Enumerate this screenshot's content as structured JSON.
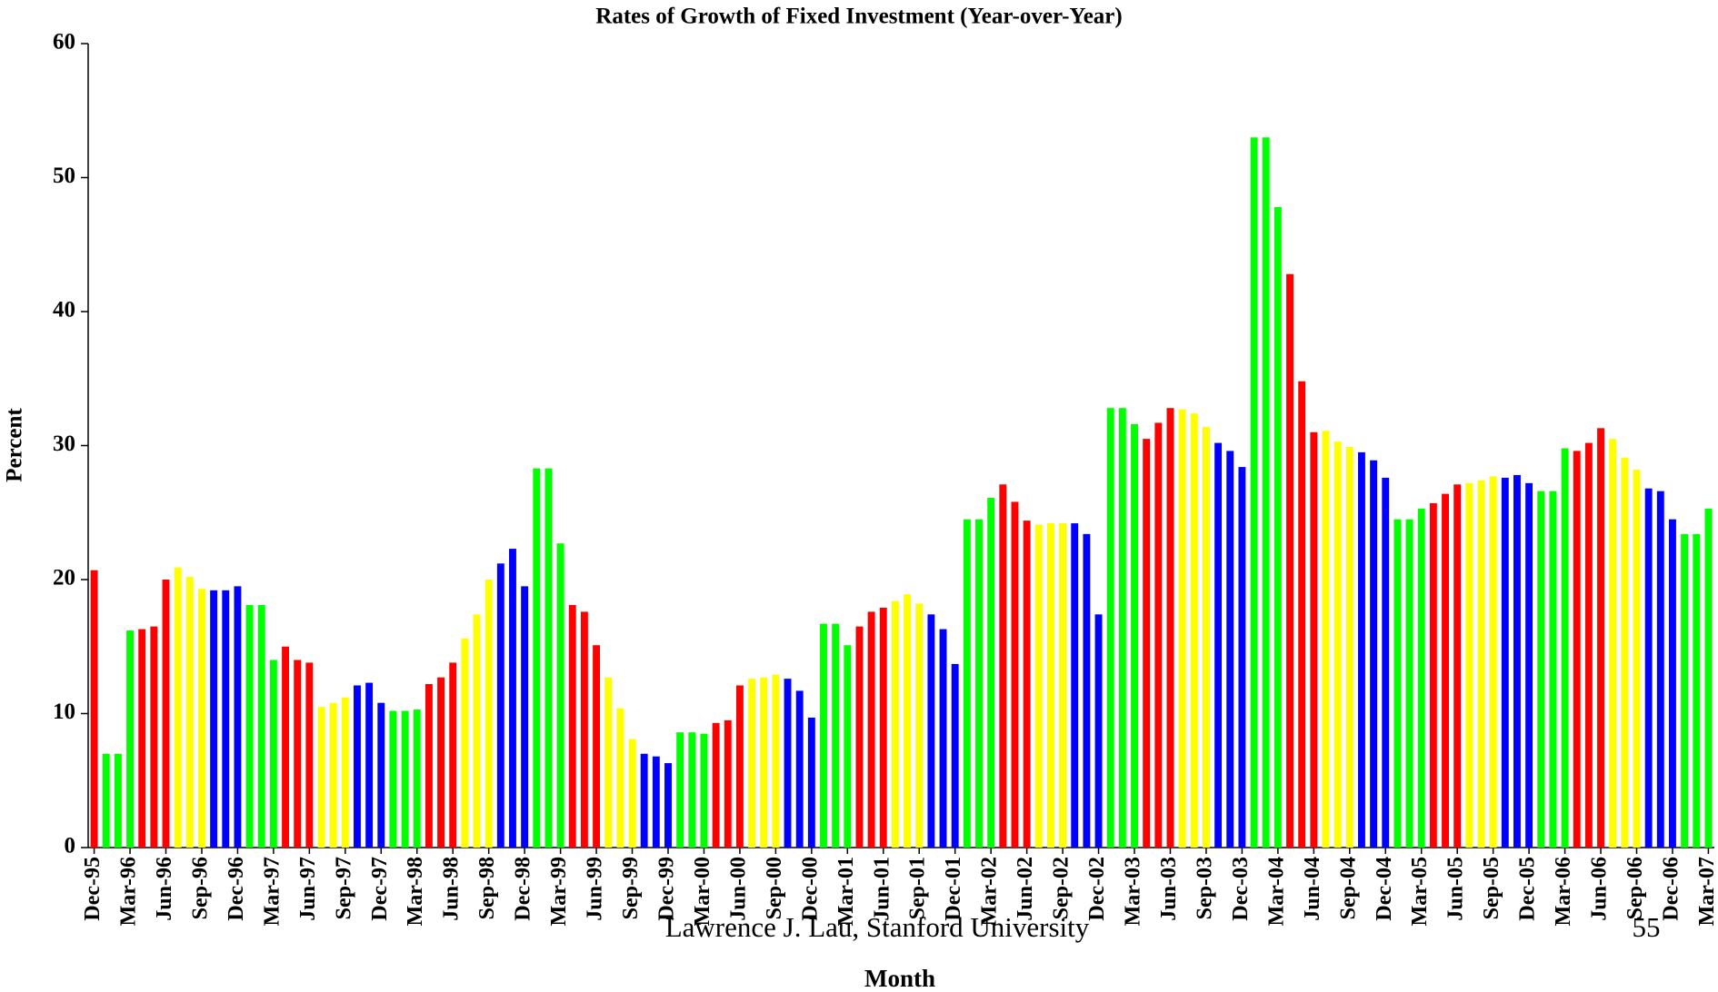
{
  "chart_data": {
    "type": "bar",
    "title": "Rates of Growth of Fixed Investment (Year-over-Year)",
    "x_label": "Month",
    "y_label": "Percent",
    "footer": "Lawrence J. Lau, Stanford University",
    "page_number": "55",
    "ylim": [
      0,
      60
    ],
    "yticks": [
      0,
      10,
      20,
      30,
      40,
      50,
      60
    ],
    "grid": false,
    "categories": [
      "Dec-95",
      null,
      null,
      "Mar-96",
      null,
      null,
      "Jun-96",
      null,
      null,
      "Sep-96",
      null,
      null,
      "Dec-96",
      null,
      null,
      "Mar-97",
      null,
      null,
      "Jun-97",
      null,
      null,
      "Sep-97",
      null,
      null,
      "Dec-97",
      null,
      null,
      "Mar-98",
      null,
      null,
      "Jun-98",
      null,
      null,
      "Sep-98",
      null,
      null,
      "Dec-98",
      null,
      null,
      "Mar-99",
      null,
      null,
      "Jun-99",
      null,
      null,
      "Sep-99",
      null,
      null,
      "Dec-99",
      null,
      null,
      "Mar-00",
      null,
      null,
      "Jun-00",
      null,
      null,
      "Sep-00",
      null,
      null,
      "Dec-00",
      null,
      null,
      "Mar-01",
      null,
      null,
      "Jun-01",
      null,
      null,
      "Sep-01",
      null,
      null,
      "Dec-01",
      null,
      null,
      "Mar-02",
      null,
      null,
      "Jun-02",
      null,
      null,
      "Sep-02",
      null,
      null,
      "Dec-02",
      null,
      null,
      "Mar-03",
      null,
      null,
      "Jun-03",
      null,
      null,
      "Sep-03",
      null,
      null,
      "Dec-03",
      null,
      null,
      "Mar-04",
      null,
      null,
      "Jun-04",
      null,
      null,
      "Sep-04",
      null,
      null,
      "Dec-04",
      null,
      null,
      "Mar-05",
      null,
      null,
      "Jun-05",
      null,
      null,
      "Sep-05",
      null,
      null,
      "Dec-05",
      null,
      null,
      "Mar-06",
      null,
      null,
      "Jun-06",
      null,
      null,
      "Sep-06",
      null,
      null,
      "Dec-06",
      null,
      null,
      "Mar-07"
    ],
    "values": [
      20.7,
      7,
      7,
      16.2,
      16.3,
      16.5,
      20,
      20.9,
      20.2,
      19.3,
      19.2,
      19.2,
      19.5,
      18.1,
      18.1,
      14,
      15,
      14,
      13.8,
      10.5,
      10.8,
      11.2,
      12.1,
      12.3,
      10.8,
      10.2,
      10.2,
      10.3,
      12.2,
      12.7,
      13.8,
      15.6,
      17.4,
      20,
      21.2,
      22.3,
      19.5,
      28.3,
      28.3,
      22.7,
      18.1,
      17.6,
      15.1,
      12.7,
      10.4,
      8.1,
      7,
      6.8,
      6.3,
      8.6,
      8.6,
      8.5,
      9.3,
      9.5,
      12.1,
      12.6,
      12.7,
      12.9,
      12.6,
      11.7,
      9.7,
      16.7,
      16.7,
      15.1,
      16.5,
      17.6,
      17.9,
      18.4,
      18.9,
      18.2,
      17.4,
      16.3,
      13.7,
      24.5,
      24.5,
      26.1,
      27.1,
      25.8,
      24.4,
      24.1,
      24.2,
      24.2,
      24.2,
      23.4,
      17.4,
      32.8,
      32.8,
      31.6,
      30.5,
      31.7,
      32.8,
      32.7,
      32.4,
      31.4,
      30.2,
      29.6,
      28.4,
      53,
      53,
      47.8,
      42.8,
      34.8,
      31,
      31.1,
      30.3,
      29.9,
      29.5,
      28.9,
      27.6,
      24.5,
      24.5,
      25.3,
      25.7,
      26.4,
      27.1,
      27.2,
      27.4,
      27.7,
      27.6,
      27.8,
      27.2,
      26.6,
      26.6,
      29.8,
      29.6,
      30.2,
      31.3,
      30.5,
      29.1,
      28.2,
      26.8,
      26.6,
      24.5,
      23.4,
      23.4,
      25.3
    ],
    "colors": [
      "#ff0000",
      "#00ff00",
      "#00ff00",
      "#00ff00",
      "#ff0000",
      "#ff0000",
      "#ff0000",
      "#ffff00",
      "#ffff00",
      "#ffff00",
      "#0000ff",
      "#0000ff",
      "#0000ff",
      "#00ff00",
      "#00ff00",
      "#00ff00",
      "#ff0000",
      "#ff0000",
      "#ff0000",
      "#ffff00",
      "#ffff00",
      "#ffff00",
      "#0000ff",
      "#0000ff",
      "#0000ff",
      "#00ff00",
      "#00ff00",
      "#00ff00",
      "#ff0000",
      "#ff0000",
      "#ff0000",
      "#ffff00",
      "#ffff00",
      "#ffff00",
      "#0000ff",
      "#0000ff",
      "#0000ff",
      "#00ff00",
      "#00ff00",
      "#00ff00",
      "#ff0000",
      "#ff0000",
      "#ff0000",
      "#ffff00",
      "#ffff00",
      "#ffff00",
      "#0000ff",
      "#0000ff",
      "#0000ff",
      "#00ff00",
      "#00ff00",
      "#00ff00",
      "#ff0000",
      "#ff0000",
      "#ff0000",
      "#ffff00",
      "#ffff00",
      "#ffff00",
      "#0000ff",
      "#0000ff",
      "#0000ff",
      "#00ff00",
      "#00ff00",
      "#00ff00",
      "#ff0000",
      "#ff0000",
      "#ff0000",
      "#ffff00",
      "#ffff00",
      "#ffff00",
      "#0000ff",
      "#0000ff",
      "#0000ff",
      "#00ff00",
      "#00ff00",
      "#00ff00",
      "#ff0000",
      "#ff0000",
      "#ff0000",
      "#ffff00",
      "#ffff00",
      "#ffff00",
      "#0000ff",
      "#0000ff",
      "#0000ff",
      "#00ff00",
      "#00ff00",
      "#00ff00",
      "#ff0000",
      "#ff0000",
      "#ff0000",
      "#ffff00",
      "#ffff00",
      "#ffff00",
      "#0000ff",
      "#0000ff",
      "#0000ff",
      "#00ff00",
      "#00ff00",
      "#00ff00",
      "#ff0000",
      "#ff0000",
      "#ff0000",
      "#ffff00",
      "#ffff00",
      "#ffff00",
      "#0000ff",
      "#0000ff",
      "#0000ff",
      "#00ff00",
      "#00ff00",
      "#00ff00",
      "#ff0000",
      "#ff0000",
      "#ff0000",
      "#ffff00",
      "#ffff00",
      "#ffff00",
      "#0000ff",
      "#0000ff",
      "#0000ff",
      "#00ff00",
      "#00ff00",
      "#00ff00",
      "#ff0000",
      "#ff0000",
      "#ff0000",
      "#ffff00",
      "#ffff00",
      "#ffff00",
      "#0000ff",
      "#0000ff",
      "#0000ff",
      "#00ff00",
      "#00ff00",
      "#00ff00"
    ]
  }
}
